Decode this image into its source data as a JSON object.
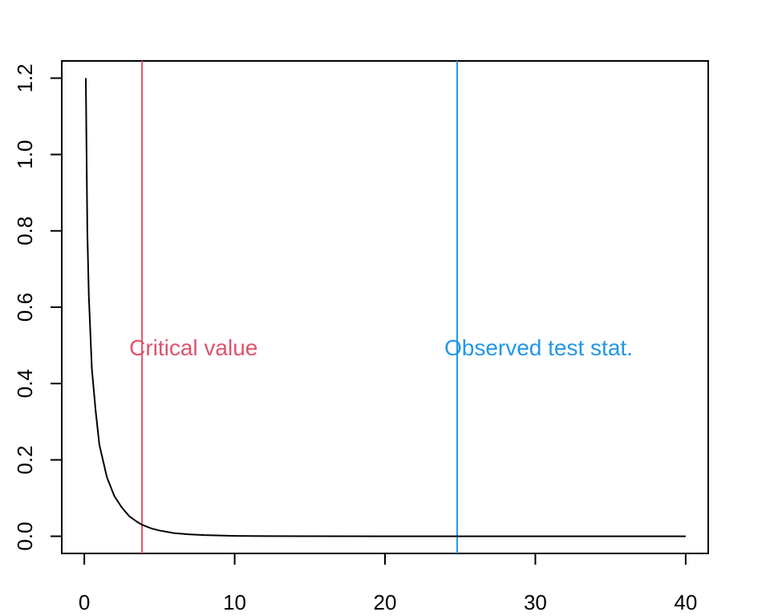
{
  "chart_data": {
    "type": "line",
    "title": "",
    "xlabel": "",
    "ylabel": "",
    "xlim": [
      -1.5,
      41.5
    ],
    "ylim": [
      -0.045,
      1.245
    ],
    "xticks": [
      0,
      10,
      20,
      30,
      40
    ],
    "xtick_labels": [
      "0",
      "10",
      "20",
      "30",
      "40"
    ],
    "yticks": [
      0,
      0.2,
      0.4,
      0.6,
      0.8,
      1.0,
      1.2
    ],
    "ytick_labels": [
      "0.0",
      "0.2",
      "0.4",
      "0.6",
      "0.8",
      "1.0",
      "1.2"
    ],
    "grid": false,
    "series": [
      {
        "color": "#000000",
        "x": [
          0.1,
          0.2,
          0.3,
          0.5,
          0.75,
          1,
          1.5,
          2,
          2.5,
          3,
          3.5,
          3.84,
          4.5,
          5,
          6,
          7,
          8,
          10,
          12,
          15,
          20,
          25,
          30,
          35,
          40
        ],
        "y": [
          1.2,
          0.8,
          0.63,
          0.44,
          0.33,
          0.24,
          0.155,
          0.105,
          0.075,
          0.052,
          0.038,
          0.03,
          0.02,
          0.015,
          0.008,
          0.005,
          0.003,
          0.001,
          0.0004,
          0.0001,
          0.0,
          0.0,
          0.0,
          0.0,
          0.0
        ]
      }
    ],
    "vlines": [
      {
        "x": 3.84,
        "color": "#DF536B",
        "label": "Critical value"
      },
      {
        "x": 24.8,
        "color": "#2297E6",
        "label": "Observed test stat."
      }
    ],
    "annotation_y": 0.495
  }
}
